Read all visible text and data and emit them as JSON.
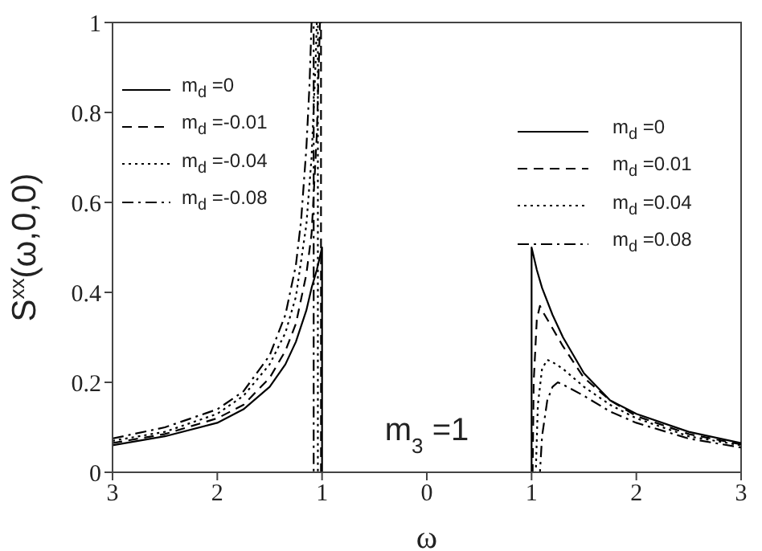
{
  "chart_data": {
    "type": "line",
    "xlabel": "ω",
    "ylabel": "S$^{xx}$(ω,0,0)",
    "annotations": [
      "m$_{3}$ =1"
    ],
    "xlim": [
      -3,
      3
    ],
    "ylim": [
      0,
      1
    ],
    "xticks": [
      {
        "value": -3,
        "label": "3"
      },
      {
        "value": -2,
        "label": "2"
      },
      {
        "value": -1,
        "label": "1"
      },
      0,
      1,
      2,
      3
    ],
    "yticks": [
      0,
      0.2,
      0.4,
      0.6,
      0.8,
      1
    ],
    "legend": "top left",
    "marker": "none",
    "series": [
      {
        "name": "m$_{d}$ =0",
        "color": "#000000",
        "line_style": "solid",
        "x": [
          -3,
          -2.5,
          -2,
          -1.75,
          -1.5,
          -1.35,
          -1.25,
          -1.15,
          -1.1,
          -1.05,
          -1,
          -1,
          1
        ],
        "values": [
          0.06,
          0.08,
          0.11,
          0.14,
          0.19,
          0.24,
          0.29,
          0.36,
          0.41,
          0.45,
          0.5,
          0,
          0
        ]
      },
      {
        "name": "m$_{d}$ =-0.01",
        "color": "#000000",
        "line_style": "dashed",
        "x": [
          -3,
          -2.5,
          -2,
          -1.75,
          -1.5,
          -1.35,
          -1.25,
          -1.15,
          -1.1,
          -1.05,
          -1.02,
          -1.01,
          -1.01,
          1
        ],
        "values": [
          0.065,
          0.085,
          0.12,
          0.15,
          0.21,
          0.27,
          0.33,
          0.44,
          0.53,
          0.75,
          1,
          1,
          0,
          0
        ]
      },
      {
        "name": "m$_{d}$ =-0.04",
        "color": "#000000",
        "line_style": "dotted",
        "x": [
          -3,
          -2.5,
          -2,
          -1.75,
          -1.5,
          -1.35,
          -1.25,
          -1.15,
          -1.1,
          -1.06,
          -1.05,
          -1.04,
          -1.04,
          1
        ],
        "values": [
          0.07,
          0.09,
          0.13,
          0.17,
          0.24,
          0.31,
          0.39,
          0.55,
          0.7,
          0.92,
          1,
          1,
          0,
          0
        ]
      },
      {
        "name": "m$_{d}$ =-0.08",
        "color": "#000000",
        "line_style": "dashdot",
        "x": [
          -3,
          -2.5,
          -2,
          -1.75,
          -1.5,
          -1.35,
          -1.25,
          -1.2,
          -1.15,
          -1.12,
          -1.1,
          -1.08,
          -1.08,
          1
        ],
        "values": [
          0.075,
          0.1,
          0.14,
          0.18,
          0.26,
          0.35,
          0.46,
          0.56,
          0.72,
          0.86,
          1,
          1,
          0,
          0
        ]
      },
      {
        "name": "m$_{d}$ =0",
        "color": "#000000",
        "line_style": "solid",
        "x": [
          -1,
          1,
          1,
          1.05,
          1.1,
          1.2,
          1.3,
          1.5,
          1.75,
          2,
          2.5,
          3
        ],
        "values": [
          0,
          0,
          0.5,
          0.45,
          0.41,
          0.35,
          0.3,
          0.22,
          0.16,
          0.13,
          0.09,
          0.065
        ]
      },
      {
        "name": "m$_{d}$ =0.01",
        "color": "#000000",
        "line_style": "dashed",
        "x": [
          -1,
          1.01,
          1.02,
          1.05,
          1.08,
          1.1,
          1.2,
          1.3,
          1.5,
          1.75,
          2,
          2.5,
          3
        ],
        "values": [
          0,
          0,
          0.2,
          0.34,
          0.37,
          0.36,
          0.32,
          0.28,
          0.21,
          0.16,
          0.125,
          0.085,
          0.062
        ]
      },
      {
        "name": "m$_{d}$ =0.04",
        "color": "#000000",
        "line_style": "dotted",
        "x": [
          -1,
          1.04,
          1.06,
          1.1,
          1.15,
          1.2,
          1.3,
          1.5,
          1.75,
          2,
          2.5,
          3
        ],
        "values": [
          0,
          0,
          0.15,
          0.23,
          0.25,
          0.245,
          0.23,
          0.19,
          0.15,
          0.12,
          0.08,
          0.06
        ]
      },
      {
        "name": "m$_{d}$ =0.08",
        "color": "#000000",
        "line_style": "dashdot",
        "x": [
          -1,
          1.08,
          1.1,
          1.15,
          1.2,
          1.25,
          1.3,
          1.5,
          1.75,
          2,
          2.5,
          3
        ],
        "values": [
          0,
          0,
          0.08,
          0.16,
          0.19,
          0.2,
          0.195,
          0.17,
          0.135,
          0.11,
          0.075,
          0.055
        ]
      }
    ]
  }
}
